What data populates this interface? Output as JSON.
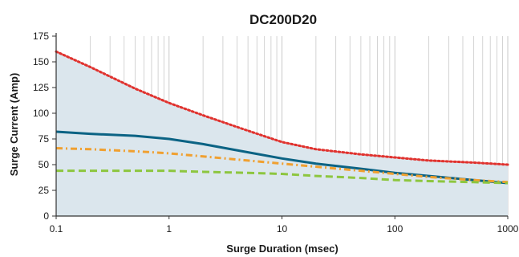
{
  "chart_data": {
    "type": "line",
    "title": "DC200D20",
    "xlabel": "Surge Duration (msec)",
    "ylabel": "Surge Current (Amp)",
    "xscale": "log",
    "xlim": [
      0.1,
      1000
    ],
    "ylim": [
      0,
      175
    ],
    "x_ticks": [
      0.1,
      1,
      10,
      100,
      1000
    ],
    "x_tick_labels": [
      "0.1",
      "1",
      "10",
      "100",
      "1000"
    ],
    "y_ticks": [
      0,
      25,
      50,
      75,
      100,
      125,
      150,
      175
    ],
    "y_tick_labels": [
      "0",
      "25",
      "50",
      "75",
      "100",
      "125",
      "150",
      "175"
    ],
    "grid": "vertical",
    "background_fill": "under top series",
    "series": [
      {
        "style": "dotted",
        "color": "#e0322e",
        "x": [
          0.1,
          0.2,
          0.5,
          1,
          2,
          5,
          10,
          20,
          50,
          100,
          200,
          500,
          1000
        ],
        "y": [
          160,
          145,
          124,
          110,
          98,
          83,
          72,
          65,
          60,
          57,
          54,
          52,
          50
        ]
      },
      {
        "style": "solid",
        "color": "#0b6384",
        "x": [
          0.1,
          0.2,
          0.5,
          1,
          2,
          5,
          10,
          20,
          50,
          100,
          200,
          500,
          1000
        ],
        "y": [
          82,
          80,
          78,
          75,
          70,
          62,
          56,
          51,
          46,
          42,
          39,
          35,
          32
        ]
      },
      {
        "style": "dash-dot",
        "color": "#f0a030",
        "x": [
          0.1,
          0.2,
          0.5,
          1,
          2,
          5,
          10,
          20,
          50,
          100,
          200,
          500,
          1000
        ],
        "y": [
          66,
          65,
          63,
          61,
          58,
          54,
          51,
          48,
          44,
          41,
          38,
          35,
          33
        ]
      },
      {
        "style": "dashed",
        "color": "#8dc63f",
        "x": [
          0.1,
          0.2,
          0.5,
          1,
          2,
          5,
          10,
          20,
          50,
          100,
          200,
          500,
          1000
        ],
        "y": [
          44,
          44,
          44,
          44,
          43,
          42,
          41,
          39,
          37,
          35,
          34,
          33,
          32
        ]
      }
    ],
    "colors": {
      "area": "#dbe6ed",
      "grid": "#c9c9c9",
      "axis": "#333333"
    }
  }
}
